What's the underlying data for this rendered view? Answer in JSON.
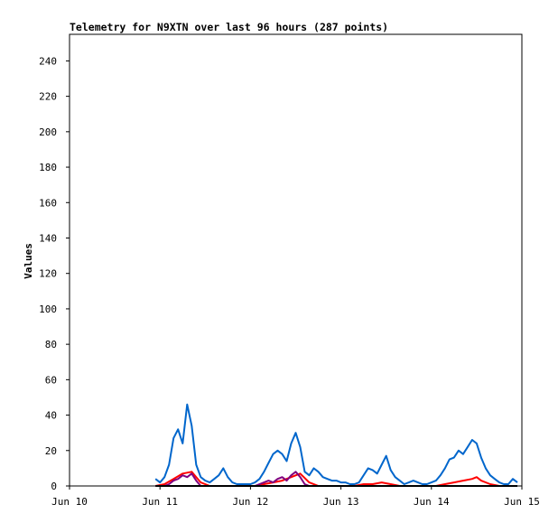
{
  "chart_data": {
    "type": "line",
    "title": "Telemetry for N9XTN over last 96 hours (287 points)",
    "ylabel": "Values",
    "xlabel": "",
    "ylim": [
      0,
      255
    ],
    "y_ticks": [
      0,
      20,
      40,
      60,
      80,
      100,
      120,
      140,
      160,
      180,
      200,
      220,
      240
    ],
    "x_ticks": [
      "Jun 10",
      "Jun 11",
      "Jun 12",
      "Jun 13",
      "Jun 14",
      "Jun 15"
    ],
    "xlim_days": [
      0,
      5
    ],
    "grid": false,
    "series": [
      {
        "color": "#0066cc",
        "points": [
          [
            0.95,
            4
          ],
          [
            1.0,
            2
          ],
          [
            1.05,
            5
          ],
          [
            1.1,
            12
          ],
          [
            1.15,
            27
          ],
          [
            1.2,
            32
          ],
          [
            1.25,
            24
          ],
          [
            1.3,
            46
          ],
          [
            1.35,
            34
          ],
          [
            1.4,
            12
          ],
          [
            1.45,
            5
          ],
          [
            1.5,
            3
          ],
          [
            1.55,
            2
          ],
          [
            1.6,
            4
          ],
          [
            1.65,
            6
          ],
          [
            1.7,
            10
          ],
          [
            1.75,
            5
          ],
          [
            1.8,
            2
          ],
          [
            1.85,
            1
          ],
          [
            1.9,
            1
          ],
          [
            1.95,
            1
          ],
          [
            2.0,
            1
          ],
          [
            2.05,
            2
          ],
          [
            2.1,
            4
          ],
          [
            2.15,
            8
          ],
          [
            2.2,
            13
          ],
          [
            2.25,
            18
          ],
          [
            2.3,
            20
          ],
          [
            2.35,
            18
          ],
          [
            2.4,
            14
          ],
          [
            2.45,
            24
          ],
          [
            2.5,
            30
          ],
          [
            2.55,
            22
          ],
          [
            2.6,
            8
          ],
          [
            2.65,
            6
          ],
          [
            2.7,
            10
          ],
          [
            2.75,
            8
          ],
          [
            2.8,
            5
          ],
          [
            2.85,
            4
          ],
          [
            2.9,
            3
          ],
          [
            2.95,
            3
          ],
          [
            3.0,
            2
          ],
          [
            3.05,
            2
          ],
          [
            3.1,
            1
          ],
          [
            3.15,
            1
          ],
          [
            3.2,
            2
          ],
          [
            3.25,
            6
          ],
          [
            3.3,
            10
          ],
          [
            3.35,
            9
          ],
          [
            3.4,
            7
          ],
          [
            3.45,
            12
          ],
          [
            3.5,
            17
          ],
          [
            3.55,
            9
          ],
          [
            3.6,
            5
          ],
          [
            3.65,
            3
          ],
          [
            3.7,
            1
          ],
          [
            3.75,
            2
          ],
          [
            3.8,
            3
          ],
          [
            3.85,
            2
          ],
          [
            3.9,
            1
          ],
          [
            3.95,
            1
          ],
          [
            4.0,
            2
          ],
          [
            4.05,
            3
          ],
          [
            4.1,
            6
          ],
          [
            4.15,
            10
          ],
          [
            4.2,
            15
          ],
          [
            4.25,
            16
          ],
          [
            4.3,
            20
          ],
          [
            4.35,
            18
          ],
          [
            4.4,
            22
          ],
          [
            4.45,
            26
          ],
          [
            4.5,
            24
          ],
          [
            4.55,
            16
          ],
          [
            4.6,
            10
          ],
          [
            4.65,
            6
          ],
          [
            4.7,
            4
          ],
          [
            4.75,
            2
          ],
          [
            4.8,
            1
          ],
          [
            4.85,
            1
          ],
          [
            4.9,
            4
          ],
          [
            4.95,
            2
          ]
        ]
      },
      {
        "color": "#ff0000",
        "points": [
          [
            0.95,
            0
          ],
          [
            1.05,
            1
          ],
          [
            1.15,
            4
          ],
          [
            1.25,
            7
          ],
          [
            1.35,
            8
          ],
          [
            1.45,
            2
          ],
          [
            1.55,
            0
          ],
          [
            1.65,
            0
          ],
          [
            1.75,
            0
          ],
          [
            1.85,
            0
          ],
          [
            2.05,
            0
          ],
          [
            2.15,
            1
          ],
          [
            2.25,
            2
          ],
          [
            2.35,
            3
          ],
          [
            2.45,
            5
          ],
          [
            2.55,
            7
          ],
          [
            2.65,
            2
          ],
          [
            2.75,
            0
          ],
          [
            2.85,
            0
          ],
          [
            2.95,
            0
          ],
          [
            3.05,
            0
          ],
          [
            3.15,
            0
          ],
          [
            3.25,
            1
          ],
          [
            3.35,
            1
          ],
          [
            3.45,
            2
          ],
          [
            3.55,
            1
          ],
          [
            3.65,
            0
          ],
          [
            3.85,
            0
          ],
          [
            4.05,
            0
          ],
          [
            4.15,
            1
          ],
          [
            4.25,
            2
          ],
          [
            4.35,
            3
          ],
          [
            4.45,
            4
          ],
          [
            4.5,
            5
          ],
          [
            4.55,
            3
          ],
          [
            4.65,
            1
          ],
          [
            4.75,
            0
          ],
          [
            4.95,
            0
          ]
        ]
      },
      {
        "color": "#800080",
        "points": [
          [
            0.95,
            0
          ],
          [
            1.05,
            0
          ],
          [
            1.1,
            1
          ],
          [
            1.15,
            3
          ],
          [
            1.2,
            4
          ],
          [
            1.25,
            6
          ],
          [
            1.3,
            5
          ],
          [
            1.35,
            7
          ],
          [
            1.4,
            3
          ],
          [
            1.45,
            0
          ],
          [
            1.55,
            0
          ],
          [
            1.65,
            0
          ],
          [
            1.75,
            0
          ],
          [
            1.85,
            0
          ],
          [
            2.05,
            0
          ],
          [
            2.1,
            1
          ],
          [
            2.15,
            2
          ],
          [
            2.2,
            3
          ],
          [
            2.25,
            2
          ],
          [
            2.3,
            4
          ],
          [
            2.35,
            5
          ],
          [
            2.4,
            3
          ],
          [
            2.45,
            6
          ],
          [
            2.5,
            8
          ],
          [
            2.55,
            5
          ],
          [
            2.6,
            1
          ],
          [
            2.65,
            0
          ],
          [
            2.75,
            0
          ],
          [
            2.95,
            0
          ],
          [
            3.2,
            0
          ],
          [
            3.95,
            0
          ]
        ]
      },
      {
        "color": "#000000",
        "points": [
          [
            0.95,
            0
          ],
          [
            4.95,
            0
          ]
        ]
      }
    ]
  }
}
